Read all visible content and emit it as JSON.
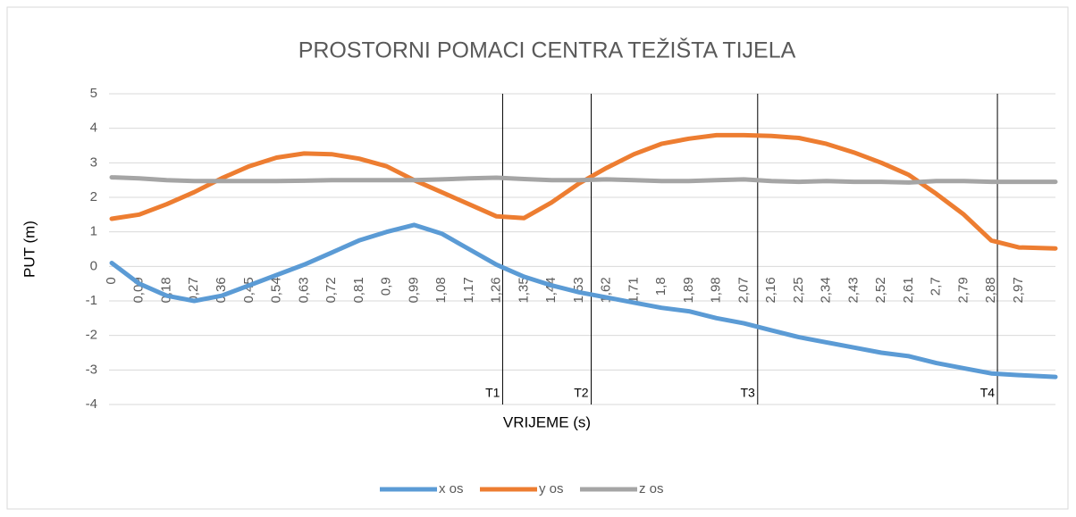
{
  "chart_data": {
    "type": "line",
    "title": "PROSTORNI POMACI CENTRA TEŽIŠTA TIJELA",
    "xlabel": "VRIJEME (s)",
    "ylabel": "PUT (m)",
    "x": [
      0,
      0.09,
      0.18,
      0.27,
      0.36,
      0.45,
      0.54,
      0.63,
      0.72,
      0.81,
      0.9,
      0.99,
      1.08,
      1.17,
      1.26,
      1.35,
      1.44,
      1.53,
      1.62,
      1.71,
      1.8,
      1.89,
      1.98,
      2.07,
      2.16,
      2.25,
      2.34,
      2.43,
      2.52,
      2.61,
      2.7,
      2.79,
      2.88,
      2.97,
      3.09
    ],
    "series": [
      {
        "name": "x os",
        "color": "#5b9bd5",
        "values": [
          0.1,
          -0.5,
          -0.85,
          -1.0,
          -0.85,
          -0.55,
          -0.25,
          0.05,
          0.4,
          0.75,
          1.0,
          1.2,
          0.95,
          0.5,
          0.05,
          -0.3,
          -0.55,
          -0.75,
          -0.9,
          -1.05,
          -1.2,
          -1.3,
          -1.5,
          -1.65,
          -1.85,
          -2.05,
          -2.2,
          -2.35,
          -2.5,
          -2.6,
          -2.8,
          -2.95,
          -3.1,
          -3.15,
          -3.2
        ]
      },
      {
        "name": "y os",
        "color": "#ed7d31",
        "values": [
          1.38,
          1.5,
          1.8,
          2.15,
          2.55,
          2.9,
          3.15,
          3.27,
          3.25,
          3.12,
          2.9,
          2.5,
          2.15,
          1.8,
          1.45,
          1.4,
          1.85,
          2.4,
          2.85,
          3.25,
          3.55,
          3.7,
          3.8,
          3.8,
          3.78,
          3.72,
          3.55,
          3.3,
          3.0,
          2.65,
          2.1,
          1.5,
          0.75,
          0.55,
          0.52
        ]
      },
      {
        "name": "z os",
        "color": "#a5a5a5",
        "values": [
          2.58,
          2.55,
          2.5,
          2.47,
          2.47,
          2.47,
          2.47,
          2.48,
          2.5,
          2.5,
          2.5,
          2.5,
          2.52,
          2.55,
          2.57,
          2.53,
          2.5,
          2.5,
          2.52,
          2.5,
          2.47,
          2.47,
          2.5,
          2.52,
          2.47,
          2.45,
          2.47,
          2.45,
          2.45,
          2.43,
          2.47,
          2.47,
          2.45,
          2.45,
          2.45
        ]
      }
    ],
    "xlim": [
      0,
      3.09
    ],
    "xticks": [
      0,
      {
        "value": 0.09,
        "label": "0,09"
      },
      {
        "value": 0.18,
        "label": "0,18"
      },
      {
        "value": 0.27,
        "label": "0,27"
      },
      {
        "value": 0.36,
        "label": "0,36"
      },
      {
        "value": 0.45,
        "label": "0,45"
      },
      {
        "value": 0.54,
        "label": "0,54"
      },
      {
        "value": 0.63,
        "label": "0,63"
      },
      {
        "value": 0.72,
        "label": "0,72"
      },
      {
        "value": 0.81,
        "label": "0,81"
      },
      {
        "value": 0.9,
        "label": "0,9"
      },
      {
        "value": 0.99,
        "label": "0,99"
      },
      {
        "value": 1.08,
        "label": "1,08"
      },
      {
        "value": 1.17,
        "label": "1,17"
      },
      {
        "value": 1.26,
        "label": "1,26"
      },
      {
        "value": 1.35,
        "label": "1,35"
      },
      {
        "value": 1.44,
        "label": "1,44"
      },
      {
        "value": 1.53,
        "label": "1,53"
      },
      {
        "value": 1.62,
        "label": "1,62"
      },
      {
        "value": 1.71,
        "label": "1,71"
      },
      {
        "value": 1.8,
        "label": "1,8"
      },
      {
        "value": 1.89,
        "label": "1,89"
      },
      {
        "value": 1.98,
        "label": "1,98"
      },
      {
        "value": 2.07,
        "label": "2,07"
      },
      {
        "value": 2.16,
        "label": "2,16"
      },
      {
        "value": 2.25,
        "label": "2,25"
      },
      {
        "value": 2.34,
        "label": "2,34"
      },
      {
        "value": 2.43,
        "label": "2,43"
      },
      {
        "value": 2.52,
        "label": "2,52"
      },
      {
        "value": 2.61,
        "label": "2,61"
      },
      {
        "value": 2.7,
        "label": "2,7"
      },
      {
        "value": 2.79,
        "label": "2,79"
      },
      {
        "value": 2.88,
        "label": "2,88"
      },
      {
        "value": 2.97,
        "label": "2,97"
      }
    ],
    "ylim": [
      -4,
      5
    ],
    "yticks": [
      -4,
      -3,
      -2,
      -1,
      0,
      1,
      2,
      3,
      4,
      5
    ],
    "grid": true,
    "legend": "bottom",
    "annotations": [
      {
        "label": "T1",
        "x": 1.28
      },
      {
        "label": "T2",
        "x": 1.57
      },
      {
        "label": "T3",
        "x": 2.115
      },
      {
        "label": "T4",
        "x": 2.9
      }
    ]
  }
}
